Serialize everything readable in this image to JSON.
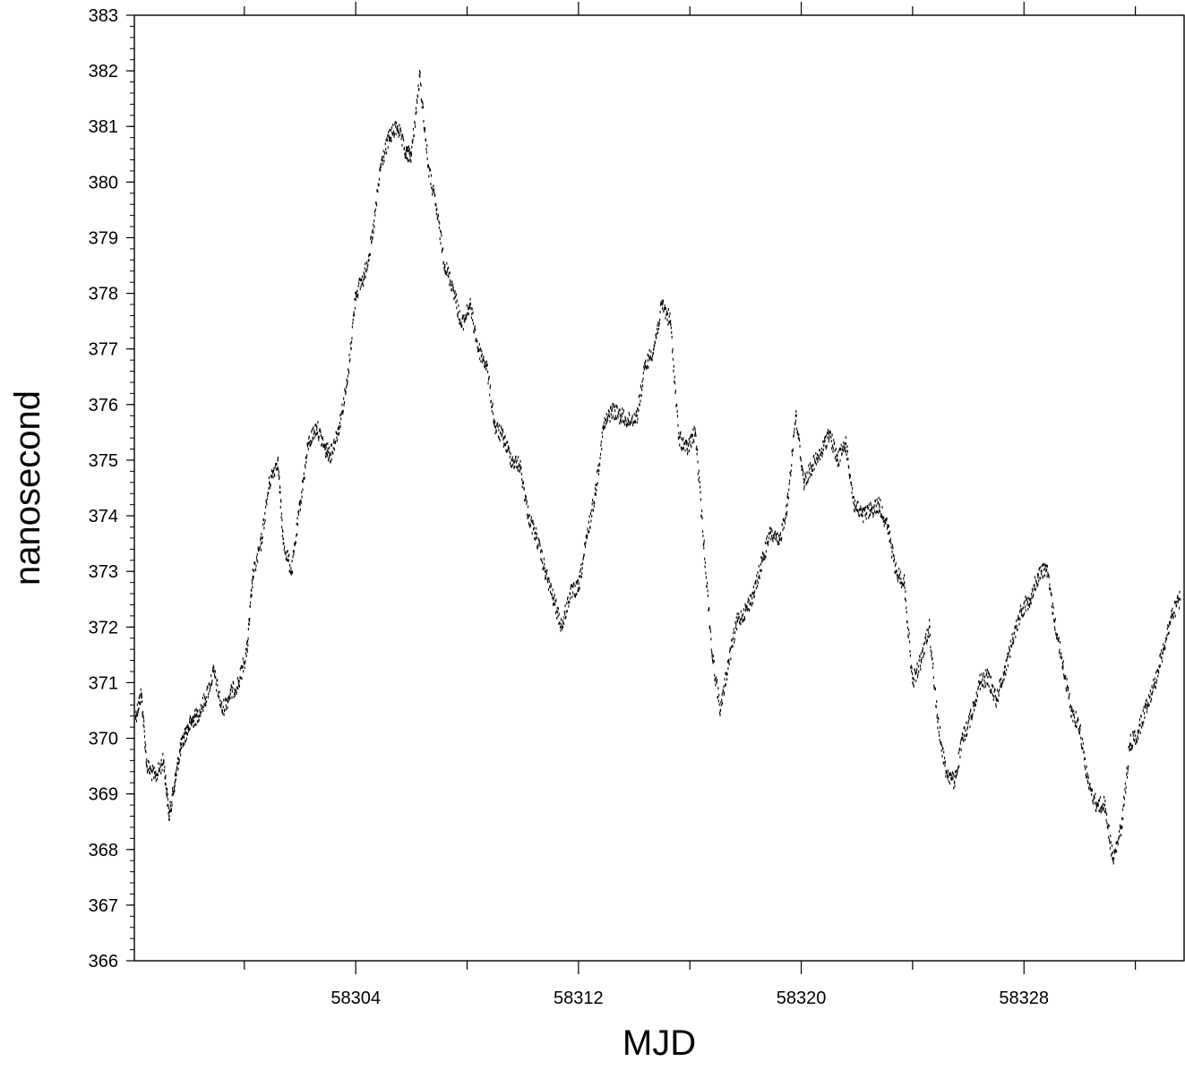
{
  "chart_data": {
    "type": "scatter",
    "title": "",
    "xlabel": "MJD",
    "ylabel": "nanosecond",
    "xlim": [
      58296.05,
      58333.75
    ],
    "ylim": [
      366,
      383
    ],
    "x_ticks": [
      58304,
      58312,
      58320,
      58328
    ],
    "x_unlabeled_ticks": [
      58300,
      58308,
      58316,
      58324,
      58332
    ],
    "y_ticks": [
      366,
      367,
      368,
      369,
      370,
      371,
      372,
      373,
      374,
      375,
      376,
      377,
      378,
      379,
      380,
      381,
      382,
      383
    ],
    "y_minor_step": 0.2,
    "grid": false,
    "legend": "none",
    "marker_color": "#000000",
    "series": [
      {
        "x": [
          58296.1,
          58296.3,
          58296.5,
          58296.8,
          58297.1,
          58297.3,
          58297.5,
          58297.7,
          58297.9,
          58298.1,
          58298.3,
          58298.6,
          58298.9,
          58299.2,
          58299.5,
          58299.8,
          58300.1,
          58300.3,
          58300.6,
          58300.9,
          58301.2,
          58301.4,
          58301.7,
          58302.0,
          58302.3,
          58302.6,
          58302.9,
          58303.1,
          58303.4,
          58303.7,
          58304.0,
          58304.3,
          58304.6,
          58304.9,
          58305.2,
          58305.5,
          58305.8,
          58306.0,
          58306.3,
          58306.6,
          58306.9,
          58307.2,
          58307.5,
          58307.8,
          58308.1,
          58308.4,
          58308.7,
          58309.0,
          58309.3,
          58309.6,
          58309.9,
          58310.2,
          58310.5,
          58310.8,
          58311.1,
          58311.4,
          58311.7,
          58312.0,
          58312.3,
          58312.6,
          58312.9,
          58313.2,
          58313.5,
          58313.8,
          58314.1,
          58314.4,
          58314.7,
          58315.0,
          58315.3,
          58315.6,
          58315.9,
          58316.2,
          58316.5,
          58316.8,
          58317.1,
          58317.4,
          58317.7,
          58318.0,
          58318.3,
          58318.6,
          58318.9,
          58319.2,
          58319.5,
          58319.8,
          58320.1,
          58320.4,
          58320.7,
          58321.0,
          58321.3,
          58321.6,
          58321.9,
          58322.2,
          58322.5,
          58322.8,
          58323.1,
          58323.4,
          58323.7,
          58324.0,
          58324.3,
          58324.6,
          58324.9,
          58325.2,
          58325.5,
          58325.8,
          58326.1,
          58326.4,
          58326.7,
          58327.0,
          58327.3,
          58327.6,
          58327.9,
          58328.2,
          58328.5,
          58328.8,
          58329.1,
          58329.4,
          58329.7,
          58330.0,
          58330.3,
          58330.6,
          58330.9,
          58331.2,
          58331.5,
          58331.8,
          58332.1,
          58332.4,
          58332.7,
          58333.0,
          58333.3,
          58333.6
        ],
        "y": [
          370.4,
          370.8,
          369.5,
          369.3,
          369.6,
          368.6,
          369.2,
          369.8,
          370.1,
          370.3,
          370.4,
          370.7,
          371.2,
          370.5,
          370.8,
          371.0,
          371.6,
          372.9,
          373.5,
          374.6,
          375.0,
          373.5,
          373.0,
          374.2,
          375.3,
          375.6,
          375.2,
          375.1,
          375.6,
          376.4,
          378.0,
          378.3,
          379.0,
          380.3,
          380.8,
          381.0,
          380.5,
          380.5,
          381.9,
          380.3,
          379.5,
          378.5,
          378.1,
          377.4,
          377.8,
          377.0,
          376.7,
          375.6,
          375.4,
          375.0,
          374.9,
          374.0,
          373.6,
          373.0,
          372.5,
          372.0,
          372.6,
          372.7,
          373.6,
          374.4,
          375.6,
          375.9,
          375.8,
          375.7,
          375.8,
          376.7,
          377.0,
          377.8,
          377.5,
          375.4,
          375.2,
          375.5,
          373.5,
          371.5,
          370.5,
          371.4,
          372.1,
          372.3,
          372.6,
          373.2,
          373.7,
          373.5,
          374.2,
          375.8,
          374.6,
          374.9,
          375.1,
          375.5,
          375.0,
          375.3,
          374.2,
          374.0,
          374.1,
          374.2,
          373.8,
          373.0,
          372.8,
          371.0,
          371.4,
          372.0,
          370.3,
          369.4,
          369.2,
          370.0,
          370.4,
          371.0,
          371.1,
          370.7,
          371.2,
          371.8,
          372.3,
          372.5,
          372.9,
          373.1,
          372.1,
          371.3,
          370.5,
          370.2,
          369.2,
          368.8,
          368.8,
          367.8,
          368.4,
          369.9,
          370.1,
          370.6,
          371.0,
          371.6,
          372.2,
          372.5
        ]
      }
    ]
  }
}
